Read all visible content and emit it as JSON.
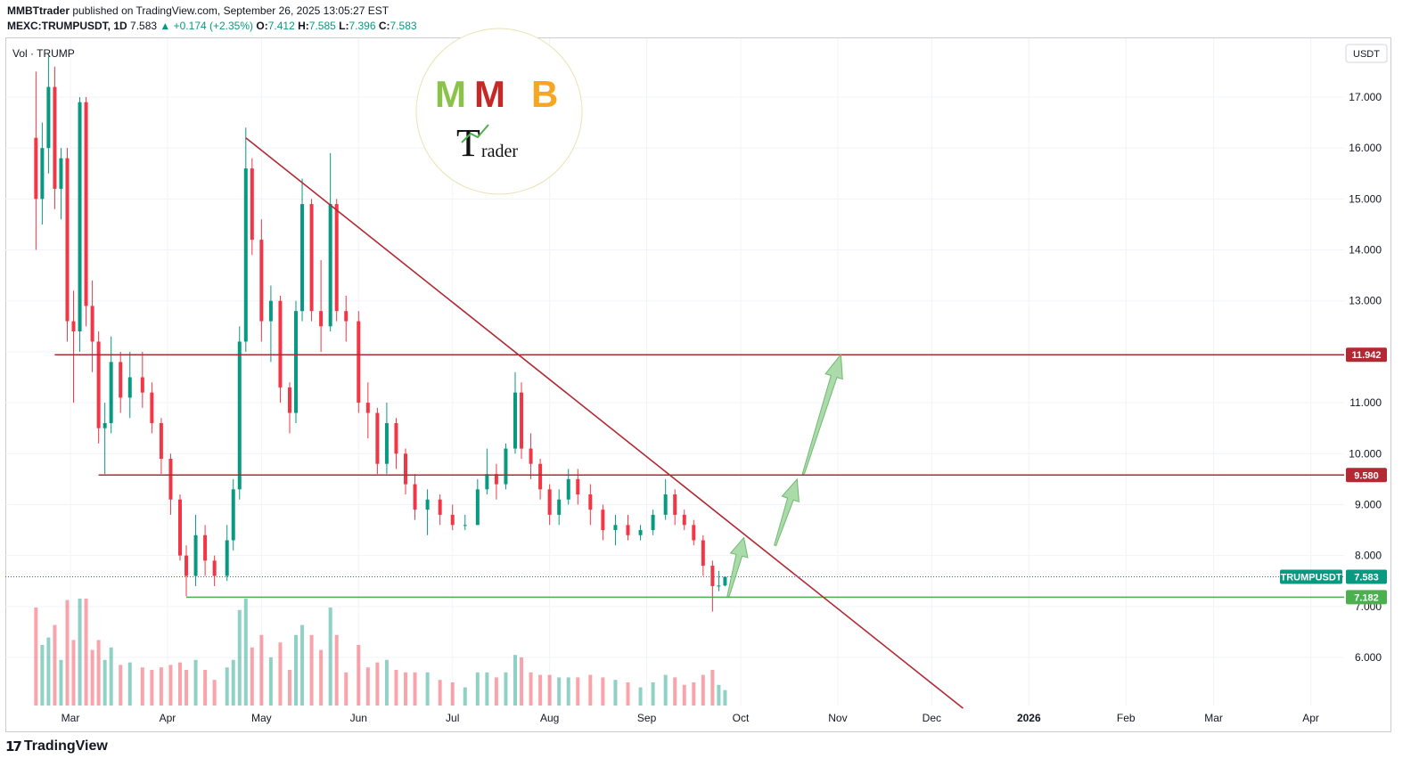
{
  "header": {
    "publisher": "MMBTtrader",
    "published_text": "published on TradingView.com, September 26, 2025 13:05:27 EST",
    "symbol": "MEXC:TRUMPUSDT, 1D",
    "last": "7.583",
    "change": "+0.174 (+2.35%)",
    "o_label": "O:",
    "o": "7.412",
    "h_label": "H:",
    "h": "7.585",
    "l_label": "L:",
    "l": "7.396",
    "c_label": "C:",
    "c": "7.583"
  },
  "volume_label": "Vol · TRUMP",
  "currency_label": "USDT",
  "logo": {
    "text": "MMB Trader",
    "accent_green": "#8bc34a",
    "accent_red": "#c62828",
    "accent_gold": "#f5a623"
  },
  "footer": {
    "brand": "TradingView"
  },
  "colors": {
    "up": "#089981",
    "down": "#f23645",
    "resistance": "#b22833",
    "support": "#4caf50",
    "arrow": "#8fcf8f"
  },
  "chart_data": {
    "type": "candlestick",
    "symbol": "TRUMPUSDT",
    "timeframe": "1D",
    "y_axis": {
      "scale": "linear",
      "range": [
        5.0,
        18.0
      ],
      "ticks": [
        "6.000",
        "7.000",
        "8.000",
        "9.000",
        "10.000",
        "11.000",
        "12.000",
        "13.000",
        "14.000",
        "15.000",
        "16.000",
        "17.000"
      ]
    },
    "x_axis": {
      "ticks": [
        "Mar",
        "Apr",
        "May",
        "Jun",
        "Jul",
        "Aug",
        "Sep",
        "Oct",
        "Nov",
        "Dec",
        "2026",
        "Feb",
        "Mar",
        "Apr"
      ]
    },
    "last_price": {
      "label": "TRUMPUSDT",
      "value": 7.583
    },
    "price_levels": [
      {
        "value": 11.942,
        "label": "11.942",
        "color": "#b22833"
      },
      {
        "value": 9.58,
        "label": "9.580",
        "color": "#b22833"
      },
      {
        "value": 7.182,
        "label": "7.182",
        "color": "#4caf50"
      }
    ],
    "trendline": {
      "from": {
        "date": "2025-04-26",
        "price": 16.2
      },
      "to": {
        "date": "2025-12-11",
        "price": 5.0
      }
    },
    "projection_arrows": [
      {
        "from": {
          "date": "2025-09-27",
          "price": 7.2
        },
        "to": {
          "date": "2025-10-02",
          "price": 8.35
        }
      },
      {
        "from": {
          "date": "2025-10-12",
          "price": 8.2
        },
        "to": {
          "date": "2025-10-19",
          "price": 9.5
        }
      },
      {
        "from": {
          "date": "2025-10-21",
          "price": 9.6
        },
        "to": {
          "date": "2025-11-02",
          "price": 11.95
        }
      }
    ],
    "series": [
      {
        "name": "price",
        "ohlc_approx": [
          [
            "2025-02-18",
            16.2,
            17.5,
            14.0,
            15.0
          ],
          [
            "2025-02-20",
            15.0,
            16.5,
            14.5,
            16.0
          ],
          [
            "2025-02-22",
            16.0,
            17.8,
            15.5,
            17.2
          ],
          [
            "2025-02-24",
            17.2,
            17.6,
            14.8,
            15.2
          ],
          [
            "2025-02-26",
            15.2,
            16.0,
            14.6,
            15.8
          ],
          [
            "2025-02-28",
            15.8,
            16.0,
            12.2,
            12.6
          ],
          [
            "2025-03-02",
            12.6,
            13.2,
            11.0,
            12.4
          ],
          [
            "2025-03-04",
            12.4,
            17.0,
            12.0,
            16.9
          ],
          [
            "2025-03-06",
            16.9,
            17.0,
            12.5,
            12.9
          ],
          [
            "2025-03-08",
            12.9,
            13.4,
            11.6,
            12.2
          ],
          [
            "2025-03-10",
            12.2,
            12.4,
            10.2,
            10.5
          ],
          [
            "2025-03-12",
            10.5,
            11.0,
            9.6,
            10.6
          ],
          [
            "2025-03-14",
            10.6,
            12.3,
            10.4,
            11.8
          ],
          [
            "2025-03-17",
            11.8,
            12.0,
            10.8,
            11.1
          ],
          [
            "2025-03-20",
            11.1,
            12.0,
            10.7,
            11.5
          ],
          [
            "2025-03-24",
            11.5,
            12.0,
            10.9,
            11.2
          ],
          [
            "2025-03-27",
            11.2,
            11.4,
            10.4,
            10.6
          ],
          [
            "2025-03-30",
            10.6,
            10.7,
            9.6,
            9.9
          ],
          [
            "2025-04-02",
            9.9,
            10.0,
            8.8,
            9.1
          ],
          [
            "2025-04-05",
            9.1,
            9.2,
            7.9,
            8.0
          ],
          [
            "2025-04-07",
            8.0,
            8.2,
            7.2,
            7.6
          ],
          [
            "2025-04-10",
            7.6,
            8.8,
            7.4,
            8.4
          ],
          [
            "2025-04-13",
            8.4,
            8.6,
            7.6,
            7.9
          ],
          [
            "2025-04-16",
            7.9,
            8.0,
            7.4,
            7.6
          ],
          [
            "2025-04-20",
            7.6,
            8.6,
            7.5,
            8.3
          ],
          [
            "2025-04-22",
            8.3,
            9.5,
            8.1,
            9.3
          ],
          [
            "2025-04-24",
            9.3,
            12.5,
            9.1,
            12.2
          ],
          [
            "2025-04-26",
            12.2,
            16.4,
            12.0,
            15.6
          ],
          [
            "2025-04-28",
            15.6,
            15.8,
            13.9,
            14.2
          ],
          [
            "2025-05-01",
            14.2,
            14.6,
            12.2,
            12.6
          ],
          [
            "2025-05-04",
            12.6,
            13.3,
            11.8,
            13.0
          ],
          [
            "2025-05-07",
            13.0,
            13.1,
            11.0,
            11.3
          ],
          [
            "2025-05-10",
            11.3,
            11.4,
            10.4,
            10.8
          ],
          [
            "2025-05-12",
            10.8,
            13.0,
            10.6,
            12.8
          ],
          [
            "2025-05-14",
            12.8,
            15.4,
            12.6,
            14.9
          ],
          [
            "2025-05-17",
            14.9,
            15.0,
            12.6,
            12.8
          ],
          [
            "2025-05-20",
            12.8,
            13.8,
            12.0,
            12.5
          ],
          [
            "2025-05-23",
            12.5,
            15.9,
            12.4,
            14.9
          ],
          [
            "2025-05-25",
            14.9,
            15.0,
            12.6,
            12.8
          ],
          [
            "2025-05-28",
            12.8,
            13.1,
            12.2,
            12.6
          ],
          [
            "2025-06-01",
            12.6,
            12.8,
            10.8,
            11.0
          ],
          [
            "2025-06-04",
            11.0,
            11.4,
            10.3,
            10.8
          ],
          [
            "2025-06-07",
            10.8,
            10.9,
            9.6,
            9.8
          ],
          [
            "2025-06-10",
            9.8,
            11.0,
            9.6,
            10.6
          ],
          [
            "2025-06-13",
            10.6,
            10.7,
            9.7,
            10.0
          ],
          [
            "2025-06-16",
            10.0,
            10.1,
            9.2,
            9.4
          ],
          [
            "2025-06-19",
            9.4,
            9.6,
            8.7,
            8.9
          ],
          [
            "2025-06-23",
            8.9,
            9.3,
            8.4,
            9.1
          ],
          [
            "2025-06-27",
            9.1,
            9.2,
            8.6,
            8.8
          ],
          [
            "2025-07-01",
            8.8,
            9.0,
            8.5,
            8.6
          ],
          [
            "2025-07-05",
            8.6,
            8.8,
            8.5,
            8.6
          ],
          [
            "2025-07-09",
            8.6,
            9.5,
            8.6,
            9.3
          ],
          [
            "2025-07-12",
            9.3,
            10.1,
            9.2,
            9.6
          ],
          [
            "2025-07-15",
            9.6,
            9.8,
            9.1,
            9.4
          ],
          [
            "2025-07-18",
            9.4,
            10.2,
            9.3,
            10.1
          ],
          [
            "2025-07-21",
            10.1,
            11.6,
            10.0,
            11.2
          ],
          [
            "2025-07-23",
            11.2,
            11.4,
            9.9,
            10.1
          ],
          [
            "2025-07-26",
            10.1,
            10.4,
            9.5,
            9.8
          ],
          [
            "2025-07-29",
            9.8,
            9.9,
            9.1,
            9.3
          ],
          [
            "2025-08-01",
            9.3,
            9.4,
            8.6,
            8.8
          ],
          [
            "2025-08-04",
            8.8,
            9.3,
            8.6,
            9.1
          ],
          [
            "2025-08-07",
            9.1,
            9.7,
            9.0,
            9.5
          ],
          [
            "2025-08-10",
            9.5,
            9.7,
            9.0,
            9.2
          ],
          [
            "2025-08-14",
            9.2,
            9.4,
            8.6,
            8.9
          ],
          [
            "2025-08-18",
            8.9,
            9.0,
            8.3,
            8.5
          ],
          [
            "2025-08-22",
            8.5,
            8.8,
            8.2,
            8.6
          ],
          [
            "2025-08-26",
            8.6,
            8.8,
            8.3,
            8.4
          ],
          [
            "2025-08-30",
            8.4,
            8.6,
            8.3,
            8.5
          ],
          [
            "2025-09-03",
            8.5,
            8.9,
            8.4,
            8.8
          ],
          [
            "2025-09-07",
            8.8,
            9.5,
            8.7,
            9.2
          ],
          [
            "2025-09-10",
            9.2,
            9.3,
            8.6,
            8.8
          ],
          [
            "2025-09-13",
            8.8,
            8.9,
            8.5,
            8.6
          ],
          [
            "2025-09-16",
            8.6,
            8.7,
            8.2,
            8.3
          ],
          [
            "2025-09-19",
            8.3,
            8.4,
            7.6,
            7.8
          ],
          [
            "2025-09-22",
            7.8,
            7.9,
            6.9,
            7.4
          ],
          [
            "2025-09-24",
            7.4,
            7.7,
            7.3,
            7.41
          ],
          [
            "2025-09-26",
            7.412,
            7.585,
            7.396,
            7.583
          ]
        ]
      }
    ]
  }
}
